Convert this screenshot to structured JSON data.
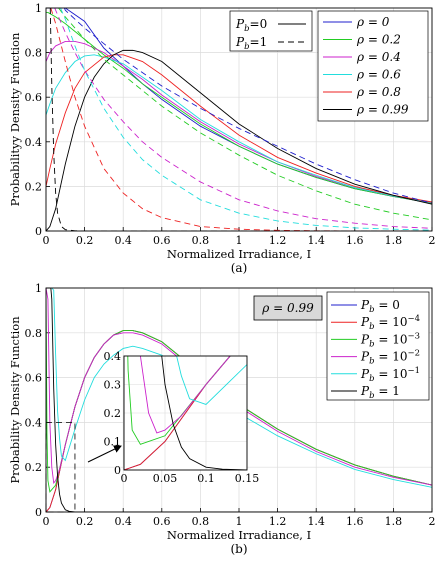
{
  "chart_data": [
    {
      "type": "line",
      "caption": "(a)",
      "xlabel": "Normalized Irradiance, I",
      "ylabel": "Probabilityy Density Function",
      "xlim": [
        0,
        2
      ],
      "ylim": [
        0,
        1
      ],
      "xticks": [
        "0",
        "0.2",
        "0.4",
        "0.6",
        "0.8",
        "1",
        "1.2",
        "1.4",
        "1.6",
        "1.8",
        "2"
      ],
      "yticks": [
        "0",
        "0.2",
        "0.4",
        "0.6",
        "0.8",
        "1"
      ],
      "grid": true,
      "style_legend": {
        "placement": "top-center",
        "entries": [
          {
            "label": "P_b=0",
            "sub": "b",
            "pre": "P",
            "post": "=0",
            "dash": "solid"
          },
          {
            "label": "P_b=1",
            "sub": "b",
            "pre": "P",
            "post": "=1",
            "dash": "dashed"
          }
        ]
      },
      "legend": {
        "placement": "top-right",
        "entries": [
          "ρ = 0",
          "ρ = 0.2",
          "ρ = 0.4",
          "ρ = 0.6",
          "ρ = 0.8",
          "ρ = 0.99"
        ]
      },
      "series": [
        {
          "name": "ρ = 0",
          "color": "#1f1fcc",
          "dash": "solid",
          "x": [
            0.0,
            0.02,
            0.05,
            0.1,
            0.2,
            0.3,
            0.4,
            0.5,
            0.6,
            0.8,
            1.0,
            1.2,
            1.4,
            1.6,
            1.8,
            2.0
          ],
          "y": [
            1.0,
            1.0,
            1.0,
            1.0,
            0.94,
            0.82,
            0.74,
            0.66,
            0.59,
            0.47,
            0.38,
            0.3,
            0.24,
            0.19,
            0.155,
            0.125
          ]
        },
        {
          "name": "ρ = 0.2",
          "color": "#22cc22",
          "dash": "solid",
          "x": [
            0.0,
            0.01,
            0.03,
            0.05,
            0.1,
            0.2,
            0.3,
            0.4,
            0.5,
            0.6,
            0.8,
            1.0,
            1.2,
            1.4,
            1.6,
            1.8,
            2.0
          ],
          "y": [
            0.98,
            0.98,
            0.97,
            0.96,
            0.93,
            0.86,
            0.79,
            0.73,
            0.66,
            0.6,
            0.48,
            0.38,
            0.3,
            0.24,
            0.19,
            0.155,
            0.125
          ]
        },
        {
          "name": "ρ = 0.4",
          "color": "#cc22cc",
          "dash": "solid",
          "x": [
            0.0,
            0.02,
            0.05,
            0.1,
            0.15,
            0.2,
            0.3,
            0.4,
            0.5,
            0.6,
            0.8,
            1.0,
            1.2,
            1.4,
            1.6,
            1.8,
            2.0
          ],
          "y": [
            0.76,
            0.8,
            0.83,
            0.85,
            0.85,
            0.84,
            0.8,
            0.74,
            0.68,
            0.61,
            0.49,
            0.39,
            0.31,
            0.245,
            0.195,
            0.157,
            0.127
          ]
        },
        {
          "name": "ρ = 0.6",
          "color": "#22dddd",
          "dash": "solid",
          "x": [
            0.0,
            0.02,
            0.05,
            0.1,
            0.15,
            0.2,
            0.25,
            0.3,
            0.4,
            0.5,
            0.6,
            0.8,
            1.0,
            1.2,
            1.4,
            1.6,
            1.8,
            2.0
          ],
          "y": [
            0.52,
            0.57,
            0.64,
            0.71,
            0.76,
            0.785,
            0.79,
            0.78,
            0.75,
            0.69,
            0.63,
            0.5,
            0.4,
            0.31,
            0.25,
            0.195,
            0.157,
            0.128
          ]
        },
        {
          "name": "ρ = 0.8",
          "color": "#ee2222",
          "dash": "solid",
          "x": [
            0.0,
            0.02,
            0.05,
            0.1,
            0.15,
            0.2,
            0.3,
            0.35,
            0.4,
            0.5,
            0.6,
            0.8,
            1.0,
            1.2,
            1.4,
            1.6,
            1.8,
            2.0
          ],
          "y": [
            0.2,
            0.28,
            0.39,
            0.53,
            0.64,
            0.71,
            0.78,
            0.79,
            0.79,
            0.76,
            0.7,
            0.56,
            0.43,
            0.33,
            0.26,
            0.2,
            0.16,
            0.13
          ]
        },
        {
          "name": "ρ = 0.99",
          "color": "#000000",
          "dash": "solid",
          "x": [
            0.0,
            0.02,
            0.05,
            0.1,
            0.15,
            0.2,
            0.25,
            0.3,
            0.35,
            0.4,
            0.45,
            0.5,
            0.6,
            0.8,
            1.0,
            1.2,
            1.4,
            1.6,
            1.8,
            2.0
          ],
          "y": [
            0.0,
            0.02,
            0.1,
            0.3,
            0.47,
            0.6,
            0.69,
            0.75,
            0.79,
            0.81,
            0.81,
            0.8,
            0.76,
            0.62,
            0.48,
            0.37,
            0.28,
            0.21,
            0.16,
            0.12
          ]
        },
        {
          "name": "ρ = 0, P_b=1",
          "color": "#1f1fcc",
          "dash": "dashed",
          "x": [
            0.095,
            0.1,
            0.15,
            0.2,
            0.3,
            0.4,
            0.5,
            0.6,
            0.8,
            1.0,
            1.2,
            1.4,
            1.6,
            1.8,
            2.0
          ],
          "y": [
            1.0,
            0.99,
            0.95,
            0.91,
            0.84,
            0.77,
            0.71,
            0.65,
            0.55,
            0.46,
            0.38,
            0.3,
            0.23,
            0.17,
            0.125
          ]
        },
        {
          "name": "ρ = 0.2, P_b=1",
          "color": "#22cc22",
          "dash": "dashed",
          "x": [
            0.065,
            0.1,
            0.15,
            0.2,
            0.3,
            0.4,
            0.5,
            0.6,
            0.8,
            1.0,
            1.2,
            1.4,
            1.6,
            1.8,
            2.0
          ],
          "y": [
            1.0,
            0.96,
            0.91,
            0.86,
            0.77,
            0.7,
            0.63,
            0.56,
            0.44,
            0.34,
            0.25,
            0.18,
            0.12,
            0.08,
            0.05
          ]
        },
        {
          "name": "ρ = 0.4, P_b=1",
          "color": "#cc22cc",
          "dash": "dashed",
          "x": [
            0.045,
            0.06,
            0.1,
            0.15,
            0.2,
            0.3,
            0.4,
            0.5,
            0.6,
            0.8,
            1.0,
            1.2,
            1.4,
            1.6,
            1.8,
            2.0
          ],
          "y": [
            1.0,
            0.97,
            0.89,
            0.8,
            0.72,
            0.59,
            0.49,
            0.4,
            0.33,
            0.22,
            0.14,
            0.09,
            0.055,
            0.035,
            0.02,
            0.012
          ]
        },
        {
          "name": "ρ = 0.6, P_b=1",
          "color": "#22dddd",
          "dash": "dashed",
          "x": [
            0.075,
            0.1,
            0.15,
            0.2,
            0.3,
            0.4,
            0.5,
            0.6,
            0.8,
            1.0,
            1.2,
            1.4,
            1.6,
            1.8,
            2.0
          ],
          "y": [
            1.0,
            0.95,
            0.83,
            0.72,
            0.55,
            0.42,
            0.32,
            0.25,
            0.14,
            0.08,
            0.045,
            0.025,
            0.014,
            0.008,
            0.004
          ]
        },
        {
          "name": "ρ = 0.8, P_b=1",
          "color": "#ee2222",
          "dash": "dashed",
          "x": [
            0.025,
            0.05,
            0.1,
            0.15,
            0.2,
            0.3,
            0.4,
            0.5,
            0.6,
            0.8,
            1.0,
            1.2,
            1.4,
            1.6,
            1.8,
            2.0
          ],
          "y": [
            1.0,
            0.93,
            0.76,
            0.6,
            0.47,
            0.28,
            0.17,
            0.1,
            0.06,
            0.02,
            0.008,
            0.003,
            0.001,
            0.0,
            0.0,
            0.0
          ]
        },
        {
          "name": "ρ = 0.99, P_b=1",
          "color": "#000000",
          "dash": "dashed",
          "x": [
            0.022,
            0.03,
            0.04,
            0.05,
            0.06,
            0.08,
            0.1,
            0.15,
            0.2,
            0.3,
            0.5,
            1.0,
            2.0
          ],
          "y": [
            1.0,
            0.65,
            0.35,
            0.17,
            0.08,
            0.02,
            0.006,
            0.001,
            0.0,
            0.0,
            0.0,
            0.0,
            0.0
          ]
        }
      ]
    },
    {
      "type": "line",
      "caption": "(b)",
      "xlabel": "Normalized Irradiance, I",
      "ylabel": "Probability Density Function",
      "xlim": [
        0,
        2
      ],
      "ylim": [
        0,
        1
      ],
      "xticks": [
        "0",
        "0.2",
        "0.4",
        "0.6",
        "0.8",
        "1",
        "1.2",
        "1.4",
        "1.6",
        "1.8",
        "2"
      ],
      "yticks": [
        "0",
        "0.2",
        "0.4",
        "0.6",
        "0.8",
        "1"
      ],
      "grid": true,
      "annotation_box": "ρ = 0.99",
      "legend": {
        "placement": "top-right",
        "entries": [
          {
            "pre": "P",
            "sub": "b",
            "post": " = 0"
          },
          {
            "pre": "P",
            "sub": "b",
            "post": " = 10",
            "sup": "−4"
          },
          {
            "pre": "P",
            "sub": "b",
            "post": " = 10",
            "sup": "−3"
          },
          {
            "pre": "P",
            "sub": "b",
            "post": " = 10",
            "sup": "−2"
          },
          {
            "pre": "P",
            "sub": "b",
            "post": " = 10",
            "sup": "−1"
          },
          {
            "pre": "P",
            "sub": "b",
            "post": " = 1"
          }
        ]
      },
      "series": [
        {
          "name": "P_b = 0",
          "color": "#1f1fcc",
          "x": [
            0.0,
            0.02,
            0.05,
            0.1,
            0.15,
            0.2,
            0.25,
            0.3,
            0.35,
            0.4,
            0.45,
            0.5,
            0.6,
            0.8,
            1.0,
            1.2,
            1.4,
            1.6,
            1.8,
            2.0
          ],
          "y": [
            0.0,
            0.02,
            0.1,
            0.3,
            0.47,
            0.6,
            0.69,
            0.75,
            0.79,
            0.81,
            0.81,
            0.8,
            0.76,
            0.62,
            0.48,
            0.37,
            0.28,
            0.21,
            0.16,
            0.12
          ]
        },
        {
          "name": "P_b = 10^-4",
          "color": "#ee2222",
          "x": [
            0.0,
            0.02,
            0.05,
            0.1,
            0.15,
            0.2,
            0.25,
            0.3,
            0.35,
            0.4,
            0.45,
            0.5,
            0.6,
            0.8,
            1.0,
            1.2,
            1.4,
            1.6,
            1.8,
            2.0
          ],
          "y": [
            0.0,
            0.02,
            0.1,
            0.3,
            0.47,
            0.6,
            0.69,
            0.75,
            0.79,
            0.81,
            0.81,
            0.8,
            0.76,
            0.62,
            0.48,
            0.37,
            0.28,
            0.21,
            0.16,
            0.12
          ]
        },
        {
          "name": "P_b = 10^-3",
          "color": "#22cc22",
          "x": [
            0.0,
            0.005,
            0.01,
            0.02,
            0.05,
            0.1,
            0.15,
            0.2,
            0.25,
            0.3,
            0.35,
            0.4,
            0.45,
            0.5,
            0.6,
            0.8,
            1.0,
            1.2,
            1.4,
            1.6,
            1.8,
            2.0
          ],
          "y": [
            1.0,
            0.35,
            0.14,
            0.09,
            0.12,
            0.3,
            0.47,
            0.6,
            0.69,
            0.75,
            0.79,
            0.81,
            0.81,
            0.8,
            0.76,
            0.62,
            0.48,
            0.37,
            0.28,
            0.21,
            0.16,
            0.12
          ]
        },
        {
          "name": "P_b = 10^-2",
          "color": "#cc22cc",
          "x": [
            0.0,
            0.01,
            0.02,
            0.03,
            0.04,
            0.05,
            0.07,
            0.1,
            0.15,
            0.2,
            0.25,
            0.3,
            0.35,
            0.4,
            0.45,
            0.5,
            0.6,
            0.8,
            1.0,
            1.2,
            1.4,
            1.6,
            1.8,
            2.0
          ],
          "y": [
            1.0,
            0.95,
            0.4,
            0.2,
            0.13,
            0.14,
            0.19,
            0.3,
            0.47,
            0.6,
            0.69,
            0.75,
            0.79,
            0.8,
            0.8,
            0.79,
            0.75,
            0.61,
            0.47,
            0.36,
            0.27,
            0.2,
            0.155,
            0.12
          ]
        },
        {
          "name": "P_b = 10^-1",
          "color": "#22dddd",
          "x": [
            0.0,
            0.01,
            0.02,
            0.03,
            0.04,
            0.05,
            0.06,
            0.07,
            0.08,
            0.1,
            0.15,
            0.2,
            0.25,
            0.3,
            0.35,
            0.4,
            0.45,
            0.5,
            0.6,
            0.8,
            1.0,
            1.2,
            1.4,
            1.6,
            1.8,
            2.0
          ],
          "y": [
            1.0,
            1.0,
            1.0,
            1.0,
            0.99,
            0.7,
            0.45,
            0.33,
            0.25,
            0.23,
            0.37,
            0.5,
            0.6,
            0.66,
            0.7,
            0.73,
            0.74,
            0.73,
            0.7,
            0.57,
            0.44,
            0.34,
            0.26,
            0.19,
            0.145,
            0.11
          ]
        },
        {
          "name": "P_b = 1",
          "color": "#000000",
          "x": [
            0.0,
            0.01,
            0.02,
            0.025,
            0.03,
            0.04,
            0.05,
            0.06,
            0.07,
            0.08,
            0.1,
            0.12,
            0.15,
            0.2,
            0.3,
            0.5,
            1.0,
            2.0
          ],
          "y": [
            1.0,
            1.0,
            1.0,
            1.0,
            0.95,
            0.55,
            0.3,
            0.16,
            0.08,
            0.04,
            0.01,
            0.003,
            0.0,
            0.0,
            0.0,
            0.0,
            0.0,
            0.0
          ]
        }
      ],
      "inset": {
        "xlim": [
          0,
          0.15
        ],
        "ylim": [
          0,
          0.4
        ],
        "xticks": [
          "0",
          "0.05",
          "0.1",
          "0.15"
        ],
        "yticks": [
          "0",
          "0.1",
          "0.2",
          "0.3",
          "0.4"
        ],
        "zoom_region": {
          "x": [
            0,
            0.15
          ],
          "y": [
            0,
            0.4
          ]
        }
      }
    }
  ]
}
